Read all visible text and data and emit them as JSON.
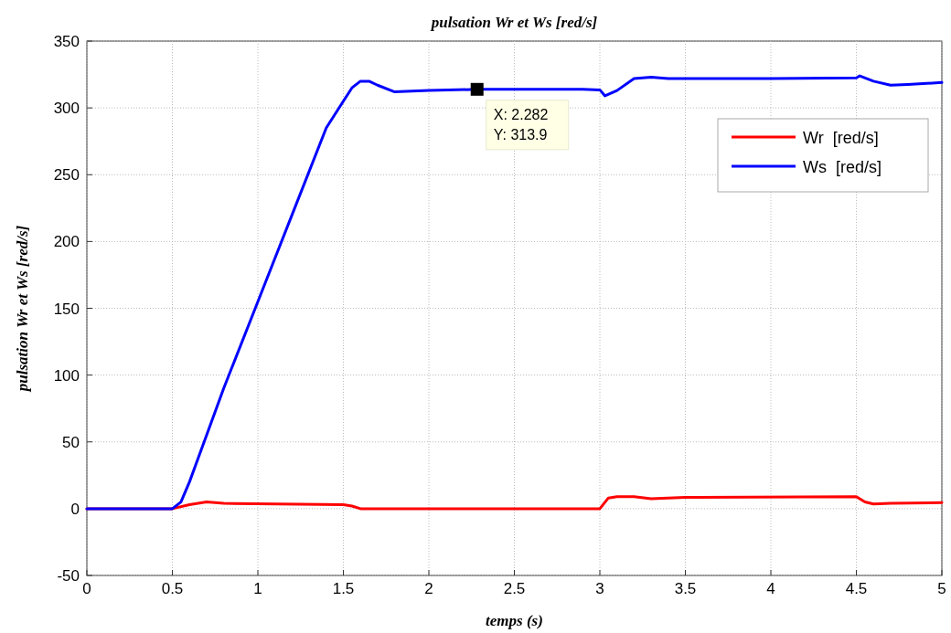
{
  "chart_data": {
    "type": "line",
    "title": "pulsation Wr et Ws [red/s]",
    "xlabel": "temps (s)",
    "ylabel": "pulsation Wr et Ws [red/s]",
    "xlim": [
      0,
      5
    ],
    "xticks": [
      0,
      0.5,
      1,
      1.5,
      2,
      2.5,
      3,
      3.5,
      4,
      4.5,
      5
    ],
    "ylim": [
      -50,
      350
    ],
    "yticks": [
      -50,
      0,
      50,
      100,
      150,
      200,
      250,
      300,
      350
    ],
    "grid": true,
    "legend": "top right",
    "marker": "none",
    "line_style": "solid",
    "annotations": [
      {
        "text": "X: 2.282\nY: 313.9",
        "x": 2.282,
        "y": 313.9
      }
    ],
    "series": [
      {
        "name": "Wr  [red/s]",
        "color": "#ff0000",
        "x": [
          0,
          0.5,
          0.6,
          0.7,
          0.8,
          1.5,
          1.55,
          1.6,
          3.0,
          3.05,
          3.1,
          3.2,
          3.3,
          3.5,
          4.5,
          4.55,
          4.6,
          4.7,
          5.0
        ],
        "values": [
          0,
          0,
          3,
          5,
          4,
          3,
          2,
          0,
          0,
          8,
          9,
          9,
          7.5,
          8.5,
          9,
          5,
          3.5,
          4,
          4.5
        ]
      },
      {
        "name": "Ws  [red/s]",
        "color": "#0000ff",
        "x": [
          0,
          0.5,
          0.55,
          0.6,
          0.7,
          0.8,
          1.0,
          1.2,
          1.4,
          1.5,
          1.55,
          1.6,
          1.65,
          1.7,
          1.8,
          2.0,
          2.282,
          2.9,
          3.0,
          3.03,
          3.1,
          3.2,
          3.3,
          3.4,
          4.0,
          4.5,
          4.52,
          4.6,
          4.7,
          4.8,
          5.0
        ],
        "values": [
          0,
          0,
          5,
          20,
          55,
          90,
          155,
          220,
          285,
          305,
          315,
          320,
          320,
          317,
          312,
          313,
          313.9,
          313.9,
          313.5,
          309,
          313,
          322,
          323,
          322,
          322,
          322.5,
          324,
          320,
          317,
          317.5,
          319
        ]
      }
    ]
  }
}
